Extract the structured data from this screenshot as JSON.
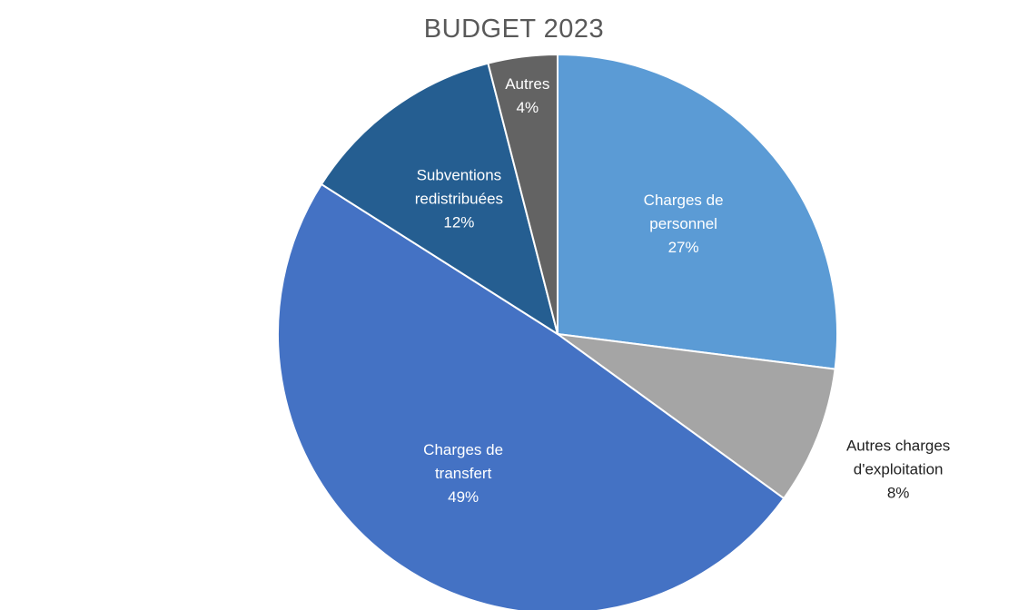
{
  "chart_data": {
    "type": "pie",
    "title": "BUDGET 2023",
    "slices": [
      {
        "name": "Charges de personnel",
        "label_lines": [
          "Charges de",
          "personnel",
          "27%"
        ],
        "value": 27,
        "color": "#5b9bd5",
        "label_color": "#ffffff",
        "label_position": "inside"
      },
      {
        "name": "Autres charges d'exploitation",
        "label_lines": [
          "Autres charges",
          "d'exploitation",
          "8%"
        ],
        "value": 8,
        "color": "#a5a5a5",
        "label_color": "#222222",
        "label_position": "outside"
      },
      {
        "name": "Charges de transfert",
        "label_lines": [
          "Charges de",
          "transfert",
          "49%"
        ],
        "value": 49,
        "color": "#4472c4",
        "label_color": "#ffffff",
        "label_position": "inside"
      },
      {
        "name": "Subventions redistribuées",
        "label_lines": [
          "Subventions",
          "redistribuées",
          "12%"
        ],
        "value": 12,
        "color": "#255e91",
        "label_color": "#ffffff",
        "label_position": "inside"
      },
      {
        "name": "Autres",
        "label_lines": [
          "Autres",
          "4%"
        ],
        "value": 4,
        "color": "#636363",
        "label_color": "#ffffff",
        "label_position": "inside"
      }
    ]
  }
}
